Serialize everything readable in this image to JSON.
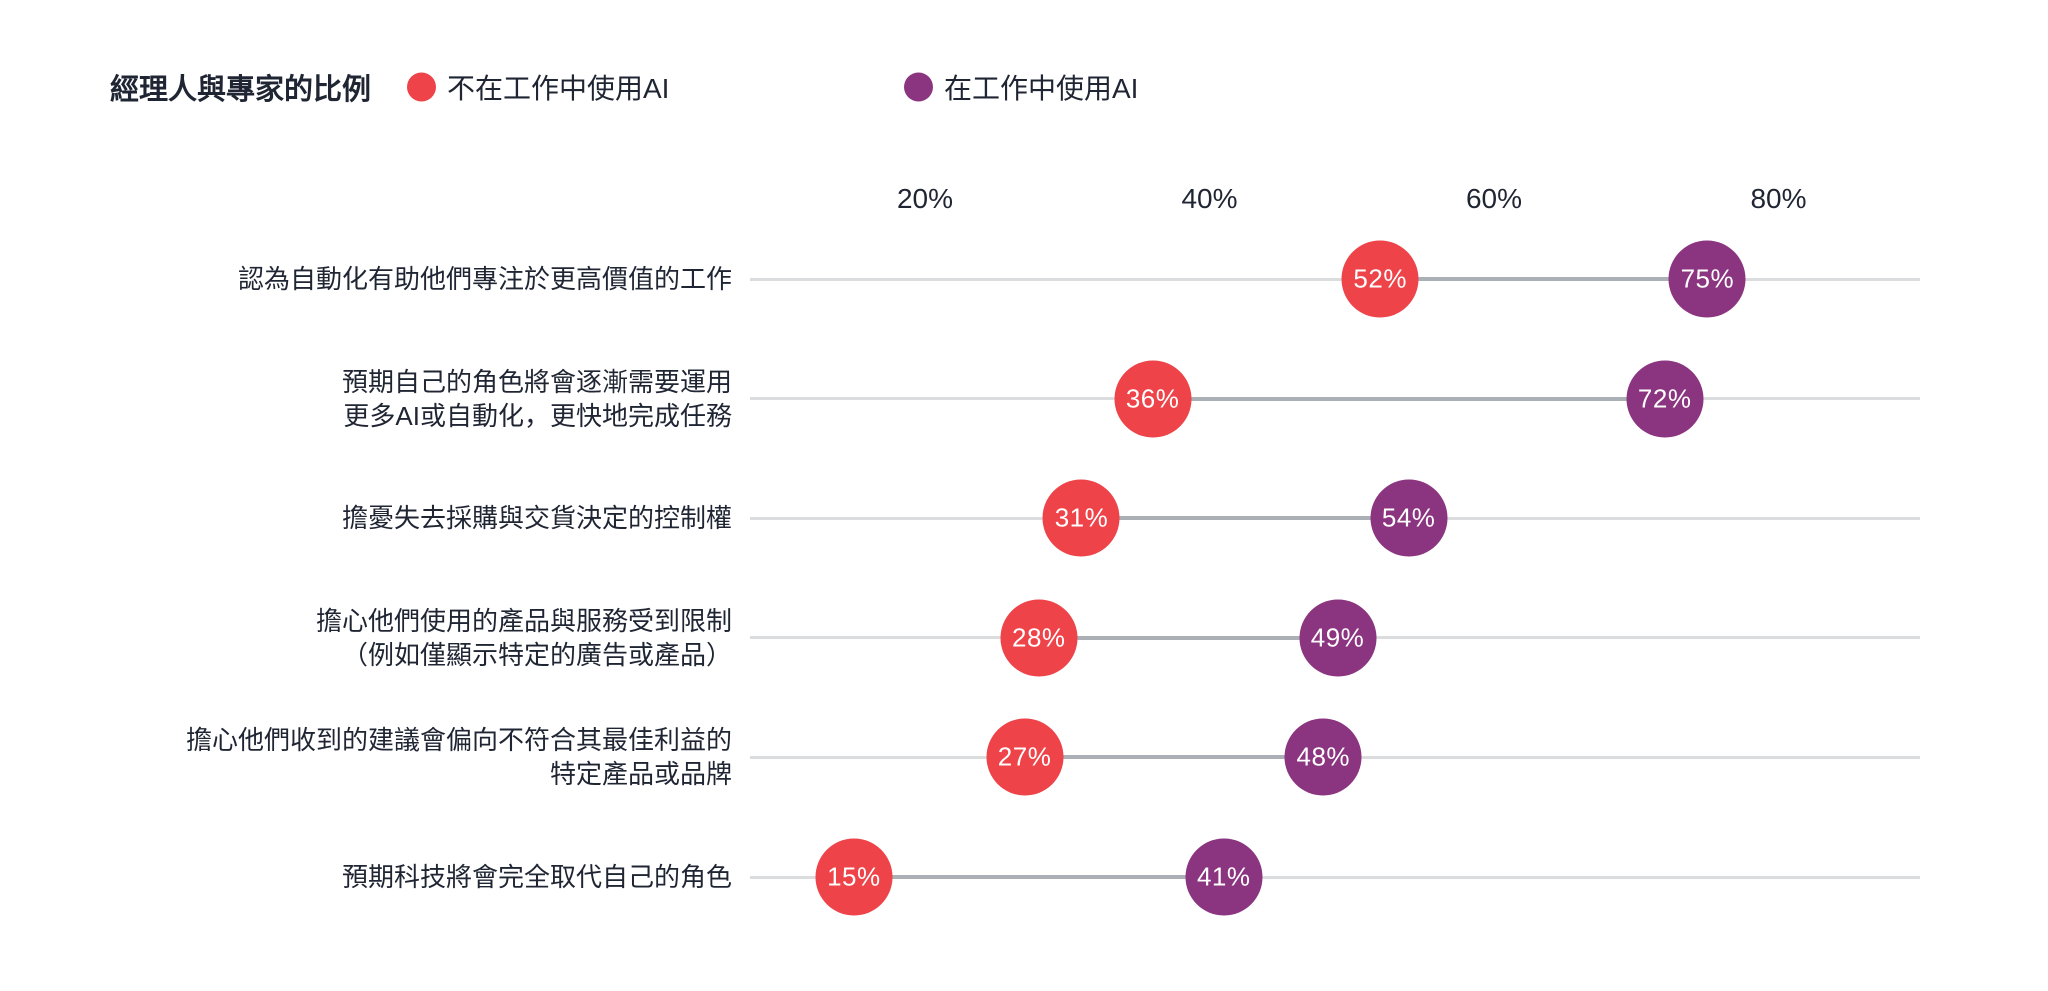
{
  "colors": {
    "red": "#ED4349",
    "purple": "#8B3480",
    "text": "#1F2533",
    "baseline_gray": "#DBDCDE",
    "connector_gray": "#ABB0B6",
    "value_text": "#FFFFFF",
    "background": "#FFFFFF"
  },
  "chart_data": {
    "type": "dumbbell",
    "title": "經理人與專家的比例",
    "unit": "%",
    "legend": [
      {
        "name": "不在工作中使用AI",
        "color": "#ED4349"
      },
      {
        "name": "在工作中使用AI",
        "color": "#8B3480"
      }
    ],
    "x_axis": {
      "tick_values": [
        20,
        40,
        60,
        80
      ],
      "tick_labels": [
        "20%",
        "40%",
        "60%",
        "80%"
      ],
      "range": [
        0,
        90
      ],
      "grid": false
    },
    "categories": [
      "認為自動化有助他們專注於更高價值的工作",
      "預期自己的角色將會逐漸需要運用\n更多AI或自動化，更快地完成任務",
      "擔憂失去採購與交貨決定的控制權",
      "擔心他們使用的產品與服務受到限制\n（例如僅顯示特定的廣告或產品）",
      "擔心他們收到的建議會偏向不符合其最佳利益的\n特定產品或品牌",
      "預期科技將會完全取代自己的角色"
    ],
    "series": [
      {
        "name": "不在工作中使用AI",
        "color": "#ED4349",
        "values": [
          52,
          36,
          31,
          28,
          27,
          15
        ]
      },
      {
        "name": "在工作中使用AI",
        "color": "#8B3480",
        "values": [
          75,
          72,
          54,
          49,
          48,
          41
        ]
      }
    ],
    "legend_position": "top-left"
  }
}
